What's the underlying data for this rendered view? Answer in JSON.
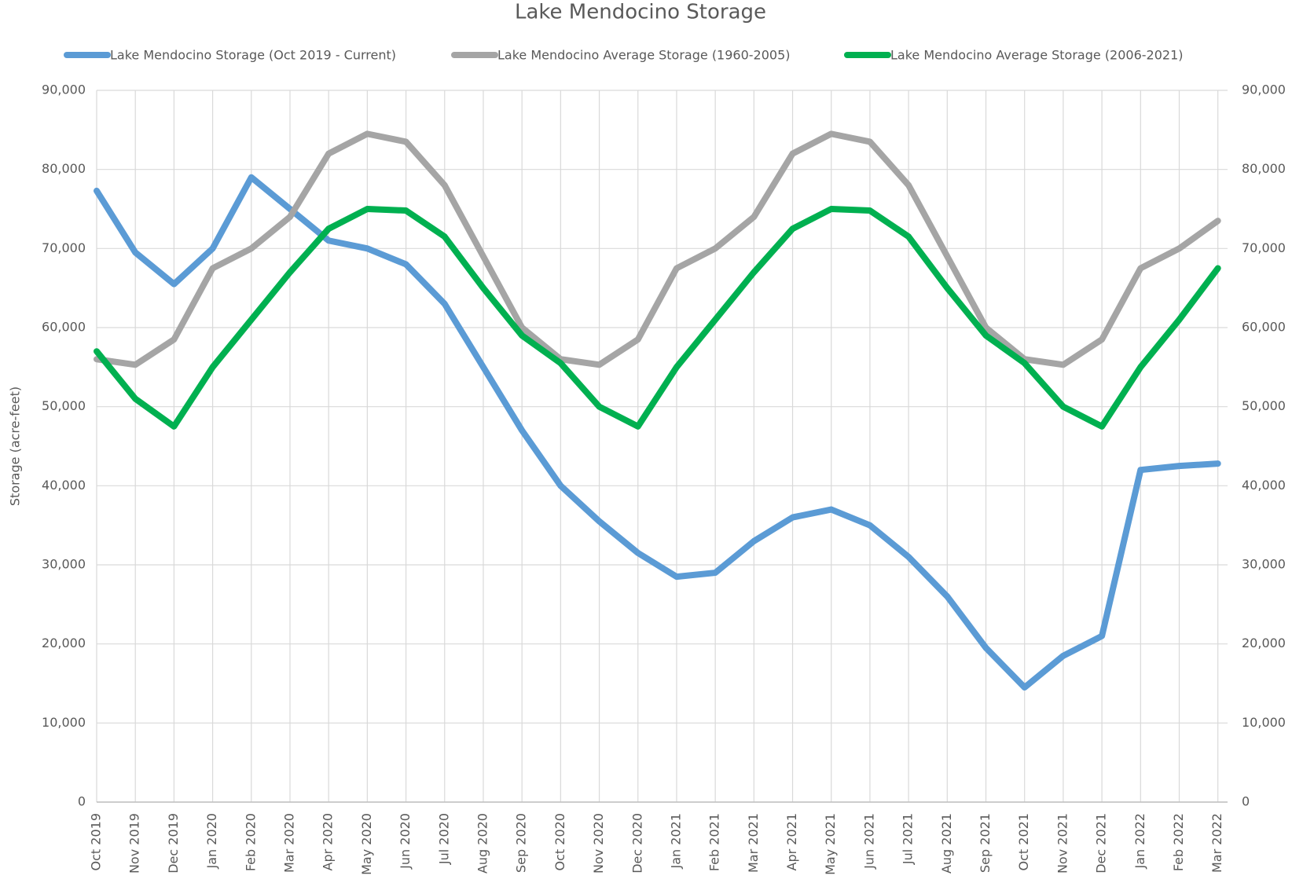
{
  "chart_data": {
    "type": "line",
    "title": "Lake Mendocino Storage",
    "y_label": "Storage (acre-feet)",
    "categories": [
      "Oct 2019",
      "Nov 2019",
      "Dec 2019",
      "Jan 2020",
      "Feb 2020",
      "Mar 2020",
      "Apr 2020",
      "May 2020",
      "Jun 2020",
      "Jul 2020",
      "Aug 2020",
      "Sep 2020",
      "Oct 2020",
      "Nov 2020",
      "Dec 2020",
      "Jan 2021",
      "Feb 2021",
      "Mar 2021",
      "Apr 2021",
      "May 2021",
      "Jun 2021",
      "Jul 2021",
      "Aug 2021",
      "Sep 2021",
      "Oct 2021",
      "Nov 2021",
      "Dec 2021",
      "Jan 2022",
      "Feb 2022",
      "Mar 2022"
    ],
    "series": [
      {
        "name": "Lake Mendocino Storage (Oct 2019 - Current)",
        "color": "#5b9bd5",
        "values": [
          77300,
          69500,
          65500,
          70000,
          79000,
          75000,
          71000,
          70000,
          68000,
          63000,
          55000,
          47000,
          40000,
          35500,
          31500,
          28500,
          29000,
          33000,
          36000,
          37000,
          35000,
          31000,
          26000,
          19500,
          14500,
          18500,
          21000,
          42000,
          42500,
          42800
        ]
      },
      {
        "name": "Lake Mendocino Average Storage (1960-2005)",
        "color": "#a5a5a5",
        "values": [
          56000,
          55300,
          58500,
          67500,
          70000,
          74000,
          82000,
          84500,
          83500,
          78000,
          69000,
          60000,
          56000,
          55300,
          58500,
          67500,
          70000,
          74000,
          82000,
          84500,
          83500,
          78000,
          69000,
          60000,
          56000,
          55300,
          58500,
          67500,
          70000,
          73500
        ]
      },
      {
        "name": "Lake Mendocino Average Storage (2006-2021)",
        "color": "#00b050",
        "values": [
          57000,
          51000,
          47500,
          55000,
          61000,
          67000,
          72500,
          75000,
          74800,
          71500,
          65000,
          59000,
          55500,
          50000,
          47500,
          55000,
          61000,
          67000,
          72500,
          75000,
          74800,
          71500,
          65000,
          59000,
          55500,
          50000,
          47500,
          55000,
          61000,
          67500
        ]
      }
    ],
    "ylim": [
      0,
      90000
    ],
    "yticks": [
      0,
      {
        "value": 10000,
        "label": "10,000"
      },
      {
        "value": 20000,
        "label": "20,000"
      },
      {
        "value": 30000,
        "label": "30,000"
      },
      {
        "value": 40000,
        "label": "40,000"
      },
      {
        "value": 50000,
        "label": "50,000"
      },
      {
        "value": 60000,
        "label": "60,000"
      },
      {
        "value": 70000,
        "label": "70,000"
      },
      {
        "value": 80000,
        "label": "80,000"
      },
      {
        "value": 90000,
        "label": "90,000"
      }
    ],
    "y2lim": [
      0,
      90000
    ],
    "y2ticks": [
      0,
      {
        "value": 10000,
        "label": "10,000"
      },
      {
        "value": 20000,
        "label": "20,000"
      },
      {
        "value": 30000,
        "label": "30,000"
      },
      {
        "value": 40000,
        "label": "40,000"
      },
      {
        "value": 50000,
        "label": "50,000"
      },
      {
        "value": 60000,
        "label": "60,000"
      },
      {
        "value": 70000,
        "label": "70,000"
      },
      {
        "value": 80000,
        "label": "80,000"
      },
      {
        "value": 90000,
        "label": "90,000"
      }
    ],
    "grid": true,
    "legend": "top"
  }
}
